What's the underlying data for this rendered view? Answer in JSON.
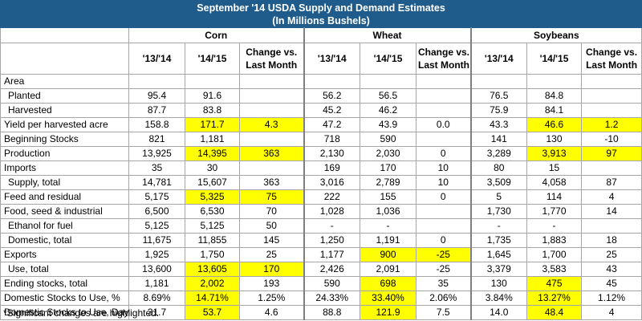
{
  "title": "September '14 USDA Supply and Demand Estimates",
  "subtitle": "(In Millions Bushels)",
  "groups": [
    "Corn",
    "Wheat",
    "Soybeans"
  ],
  "columns": [
    "'13/'14",
    "'14/'15",
    "Change vs. Last Month",
    "'13/'14",
    "'14/'15",
    "Change vs. Last Month",
    "'13/'14",
    "'14/'15",
    "Change vs. Last Month"
  ],
  "col_head_lines": {
    "y13": "'13/'14",
    "y14": "'14/'15",
    "chg1": "Change vs.",
    "chg2": "Last Month"
  },
  "rows": [
    {
      "label": "Area",
      "indent": false,
      "values": [
        "",
        "",
        "",
        "",
        "",
        "",
        "",
        "",
        ""
      ],
      "highlight": []
    },
    {
      "label": "Planted",
      "indent": true,
      "values": [
        "95.4",
        "91.6",
        "",
        "56.2",
        "56.5",
        "",
        "76.5",
        "84.8",
        ""
      ],
      "highlight": []
    },
    {
      "label": "Harvested",
      "indent": true,
      "values": [
        "87.7",
        "83.8",
        "",
        "45.2",
        "46.2",
        "",
        "75.9",
        "84.1",
        ""
      ],
      "highlight": []
    },
    {
      "label": "Yield per harvested acre",
      "indent": false,
      "values": [
        "158.8",
        "171.7",
        "4.3",
        "47.2",
        "43.9",
        "0.0",
        "43.3",
        "46.6",
        "1.2"
      ],
      "highlight": [
        1,
        2,
        7,
        8
      ]
    },
    {
      "label": "Beginning Stocks",
      "indent": false,
      "values": [
        "821",
        "1,181",
        "",
        "718",
        "590",
        "",
        "141",
        "130",
        "-10"
      ],
      "highlight": []
    },
    {
      "label": "Production",
      "indent": false,
      "values": [
        "13,925",
        "14,395",
        "363",
        "2,130",
        "2,030",
        "0",
        "3,289",
        "3,913",
        "97"
      ],
      "highlight": [
        1,
        2,
        7,
        8
      ]
    },
    {
      "label": "Imports",
      "indent": false,
      "values": [
        "35",
        "30",
        "",
        "169",
        "170",
        "10",
        "80",
        "15",
        ""
      ],
      "highlight": []
    },
    {
      "label": "Supply, total",
      "indent": true,
      "values": [
        "14,781",
        "15,607",
        "363",
        "3,016",
        "2,789",
        "10",
        "3,509",
        "4,058",
        "87"
      ],
      "highlight": []
    },
    {
      "label": "Feed and residual",
      "indent": false,
      "values": [
        "5,175",
        "5,325",
        "75",
        "222",
        "155",
        "0",
        "5",
        "114",
        "4"
      ],
      "highlight": [
        1,
        2
      ]
    },
    {
      "label": "Food, seed & industrial",
      "indent": false,
      "values": [
        "6,500",
        "6,530",
        "70",
        "1,028",
        "1,036",
        "",
        "1,730",
        "1,770",
        "14"
      ],
      "highlight": []
    },
    {
      "label": "Ethanol for fuel",
      "indent": true,
      "values": [
        "5,125",
        "5,125",
        "50",
        "-",
        "-",
        "",
        "-",
        "-",
        ""
      ],
      "highlight": []
    },
    {
      "label": "Domestic, total",
      "indent": true,
      "values": [
        "11,675",
        "11,855",
        "145",
        "1,250",
        "1,191",
        "0",
        "1,735",
        "1,883",
        "18"
      ],
      "highlight": []
    },
    {
      "label": "Exports",
      "indent": false,
      "values": [
        "1,925",
        "1,750",
        "25",
        "1,177",
        "900",
        "-25",
        "1,645",
        "1,700",
        "25"
      ],
      "highlight": [
        4,
        5
      ]
    },
    {
      "label": "Use, total",
      "indent": true,
      "values": [
        "13,600",
        "13,605",
        "170",
        "2,426",
        "2,091",
        "-25",
        "3,379",
        "3,583",
        "43"
      ],
      "highlight": [
        1,
        2
      ]
    },
    {
      "label": "Ending stocks, total",
      "indent": false,
      "values": [
        "1,181",
        "2,002",
        "193",
        "590",
        "698",
        "35",
        "130",
        "475",
        "45"
      ],
      "highlight": [
        1,
        4,
        7
      ]
    },
    {
      "label": "Domestic Stocks to Use, %",
      "indent": false,
      "values": [
        "8.69%",
        "14.71%",
        "1.25%",
        "24.33%",
        "33.40%",
        "2.06%",
        "3.84%",
        "13.27%",
        "1.12%"
      ],
      "highlight": [
        1,
        4,
        7
      ]
    },
    {
      "label": "Domestic Stocks to Use, Days",
      "indent": false,
      "values": [
        "31.7",
        "53.7",
        "4.6",
        "88.8",
        "121.9",
        "7.5",
        "14.0",
        "48.4",
        "4"
      ],
      "highlight": [
        1,
        4,
        7
      ]
    }
  ],
  "footnote": "*Significant changes are highlighted.",
  "colors": {
    "header_bg": "#1f5c8b",
    "header_text": "#ffffff",
    "highlight": "#ffff00",
    "grid": "#a6a6a6"
  }
}
